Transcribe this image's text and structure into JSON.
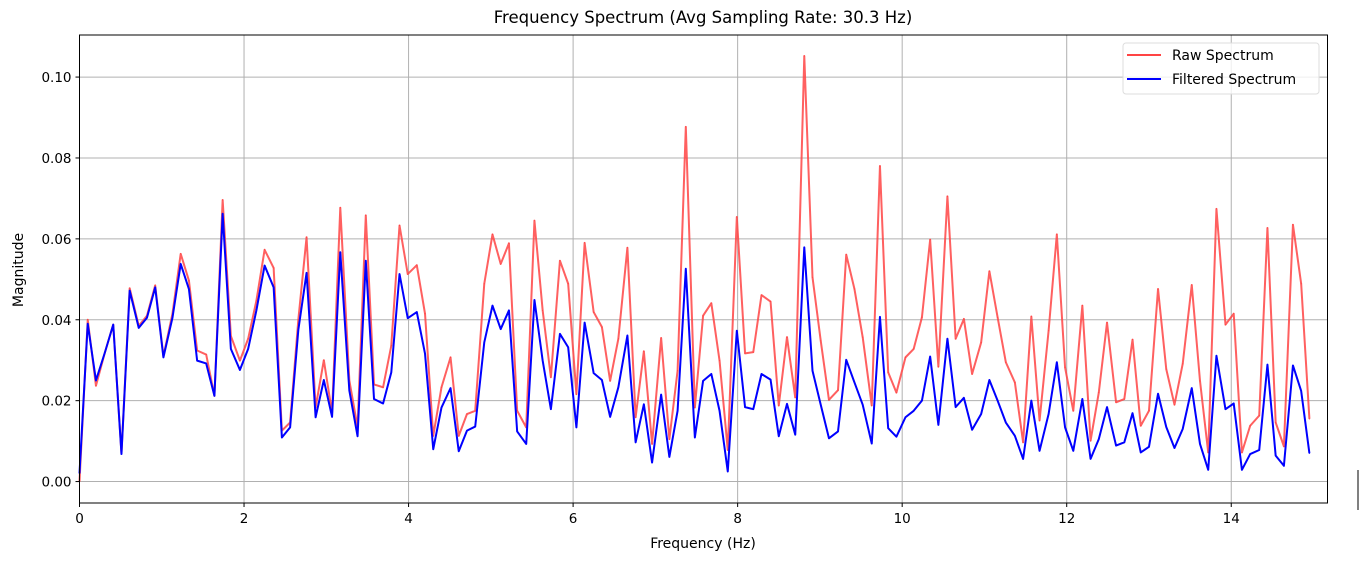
{
  "chart_data": {
    "type": "line",
    "title": "Frequency Spectrum (Avg Sampling Rate: 30.3 Hz)",
    "xlabel": "Frequency (Hz)",
    "ylabel": "Magnitude",
    "xlim": [
      0,
      15.17
    ],
    "ylim": [
      -0.0053,
      0.1104
    ],
    "xticks": [
      "0",
      "2",
      "4",
      "6",
      "8",
      "10",
      "12",
      "14"
    ],
    "xtick_values": [
      0,
      2,
      4,
      6,
      8,
      10,
      12,
      14
    ],
    "yticks": [
      "0.00",
      "0.02",
      "0.04",
      "0.06",
      "0.08",
      "0.10"
    ],
    "ytick_values": [
      0,
      0.02,
      0.04,
      0.06,
      0.08,
      0.1
    ],
    "grid": true,
    "legend_position": "top-right",
    "x": [
      0,
      0.1,
      0.2,
      0.31,
      0.41,
      0.51,
      0.61,
      0.72,
      0.82,
      0.92,
      1.02,
      1.13,
      1.23,
      1.33,
      1.43,
      1.54,
      1.64,
      1.74,
      1.84,
      1.95,
      2.05,
      2.15,
      2.25,
      2.36,
      2.46,
      2.56,
      2.66,
      2.76,
      2.87,
      2.97,
      3.07,
      3.17,
      3.28,
      3.38,
      3.48,
      3.58,
      3.69,
      3.79,
      3.89,
      3.99,
      4.1,
      4.2,
      4.3,
      4.4,
      4.51,
      4.61,
      4.71,
      4.81,
      4.92,
      5.02,
      5.12,
      5.22,
      5.32,
      5.43,
      5.53,
      5.63,
      5.73,
      5.84,
      5.94,
      6.04,
      6.14,
      6.25,
      6.35,
      6.45,
      6.55,
      6.66,
      6.76,
      6.86,
      6.96,
      7.07,
      7.17,
      7.27,
      7.37,
      7.48,
      7.58,
      7.68,
      7.78,
      7.88,
      7.99,
      8.09,
      8.19,
      8.29,
      8.4,
      8.5,
      8.6,
      8.7,
      8.81,
      8.91,
      9.01,
      9.11,
      9.22,
      9.32,
      9.42,
      9.52,
      9.63,
      9.73,
      9.83,
      9.93,
      10.04,
      10.14,
      10.24,
      10.34,
      10.44,
      10.55,
      10.65,
      10.75,
      10.85,
      10.96,
      11.06,
      11.16,
      11.26,
      11.37,
      11.47,
      11.57,
      11.67,
      11.78,
      11.88,
      11.98,
      12.08,
      12.19,
      12.29,
      12.39,
      12.49,
      12.6,
      12.7,
      12.8,
      12.9,
      13.0,
      13.11,
      13.21,
      13.31,
      13.41,
      13.52,
      13.62,
      13.72,
      13.82,
      13.93,
      14.03,
      14.13,
      14.23,
      14.34,
      14.44,
      14.54,
      14.64,
      14.75,
      14.85,
      14.95
    ],
    "series": [
      {
        "name": "Raw Spectrum",
        "color": "#ff4444",
        "values": [
          0.0,
          0.04,
          0.0237,
          0.032,
          0.0388,
          0.007,
          0.0478,
          0.0385,
          0.041,
          0.0485,
          0.031,
          0.0415,
          0.0563,
          0.0497,
          0.0324,
          0.0314,
          0.0212,
          0.0696,
          0.036,
          0.0299,
          0.0353,
          0.0447,
          0.0573,
          0.0528,
          0.0126,
          0.0146,
          0.04,
          0.0604,
          0.0183,
          0.03,
          0.017,
          0.0677,
          0.025,
          0.0134,
          0.0658,
          0.024,
          0.0233,
          0.0336,
          0.0633,
          0.0513,
          0.0535,
          0.0415,
          0.0113,
          0.0233,
          0.0307,
          0.0113,
          0.0167,
          0.0175,
          0.0489,
          0.0611,
          0.0538,
          0.0589,
          0.0175,
          0.0134,
          0.0645,
          0.0423,
          0.0258,
          0.0546,
          0.0489,
          0.0216,
          0.059,
          0.0419,
          0.0382,
          0.0249,
          0.0353,
          0.0578,
          0.0159,
          0.0322,
          0.0093,
          0.0355,
          0.0105,
          0.0274,
          0.0877,
          0.0183,
          0.041,
          0.0441,
          0.0299,
          0.0078,
          0.0654,
          0.0317,
          0.032,
          0.0461,
          0.0445,
          0.0188,
          0.0357,
          0.0208,
          0.1052,
          0.0505,
          0.0348,
          0.0202,
          0.0226,
          0.0561,
          0.0476,
          0.0357,
          0.0188,
          0.078,
          0.027,
          0.022,
          0.0307,
          0.0328,
          0.0406,
          0.0598,
          0.0284,
          0.0705,
          0.0353,
          0.0402,
          0.0266,
          0.0344,
          0.052,
          0.0406,
          0.0295,
          0.0245,
          0.0097,
          0.0408,
          0.0151,
          0.0373,
          0.0611,
          0.0282,
          0.0175,
          0.0435,
          0.0101,
          0.022,
          0.0393,
          0.0196,
          0.0204,
          0.0351,
          0.0138,
          0.0175,
          0.0476,
          0.0278,
          0.019,
          0.0291,
          0.0486,
          0.0249,
          0.0072,
          0.0674,
          0.0388,
          0.0415,
          0.0072,
          0.0138,
          0.0163,
          0.0627,
          0.0146,
          0.0087,
          0.0635,
          0.0489,
          0.0155
        ]
      },
      {
        "name": "Filtered Spectrum",
        "color": "#0000ff",
        "values": [
          0.002,
          0.039,
          0.025,
          0.032,
          0.0388,
          0.0068,
          0.0472,
          0.038,
          0.0405,
          0.048,
          0.0307,
          0.0405,
          0.0538,
          0.0476,
          0.0299,
          0.0292,
          0.0212,
          0.0662,
          0.0328,
          0.0276,
          0.0328,
          0.0423,
          0.0534,
          0.048,
          0.0109,
          0.0134,
          0.0375,
          0.0516,
          0.0159,
          0.0251,
          0.016,
          0.0567,
          0.0225,
          0.0112,
          0.0546,
          0.0204,
          0.0193,
          0.027,
          0.0513,
          0.0404,
          0.0419,
          0.0316,
          0.008,
          0.0183,
          0.0231,
          0.0075,
          0.0126,
          0.0136,
          0.0344,
          0.0435,
          0.0377,
          0.0423,
          0.0124,
          0.0093,
          0.0449,
          0.0299,
          0.0179,
          0.0365,
          0.0332,
          0.0134,
          0.0393,
          0.0268,
          0.0251,
          0.016,
          0.0233,
          0.0361,
          0.0097,
          0.0191,
          0.0047,
          0.0215,
          0.0061,
          0.0175,
          0.0526,
          0.0109,
          0.0249,
          0.0266,
          0.0175,
          0.0025,
          0.0373,
          0.0184,
          0.0179,
          0.0266,
          0.0252,
          0.0112,
          0.0192,
          0.0116,
          0.0579,
          0.0274,
          0.019,
          0.0107,
          0.0124,
          0.0301,
          0.0245,
          0.019,
          0.0094,
          0.0407,
          0.0132,
          0.0111,
          0.0159,
          0.0175,
          0.02,
          0.0309,
          0.014,
          0.0353,
          0.0184,
          0.0207,
          0.0128,
          0.0167,
          0.0251,
          0.02,
          0.0146,
          0.0113,
          0.0056,
          0.02,
          0.0076,
          0.0167,
          0.0295,
          0.0134,
          0.0076,
          0.0204,
          0.0056,
          0.0105,
          0.0184,
          0.0089,
          0.0097,
          0.0169,
          0.0072,
          0.0086,
          0.0217,
          0.0135,
          0.0083,
          0.013,
          0.0231,
          0.0093,
          0.0029,
          0.0311,
          0.0179,
          0.0193,
          0.0029,
          0.0068,
          0.0078,
          0.0289,
          0.0064,
          0.0039,
          0.0287,
          0.0224,
          0.007
        ]
      }
    ]
  }
}
